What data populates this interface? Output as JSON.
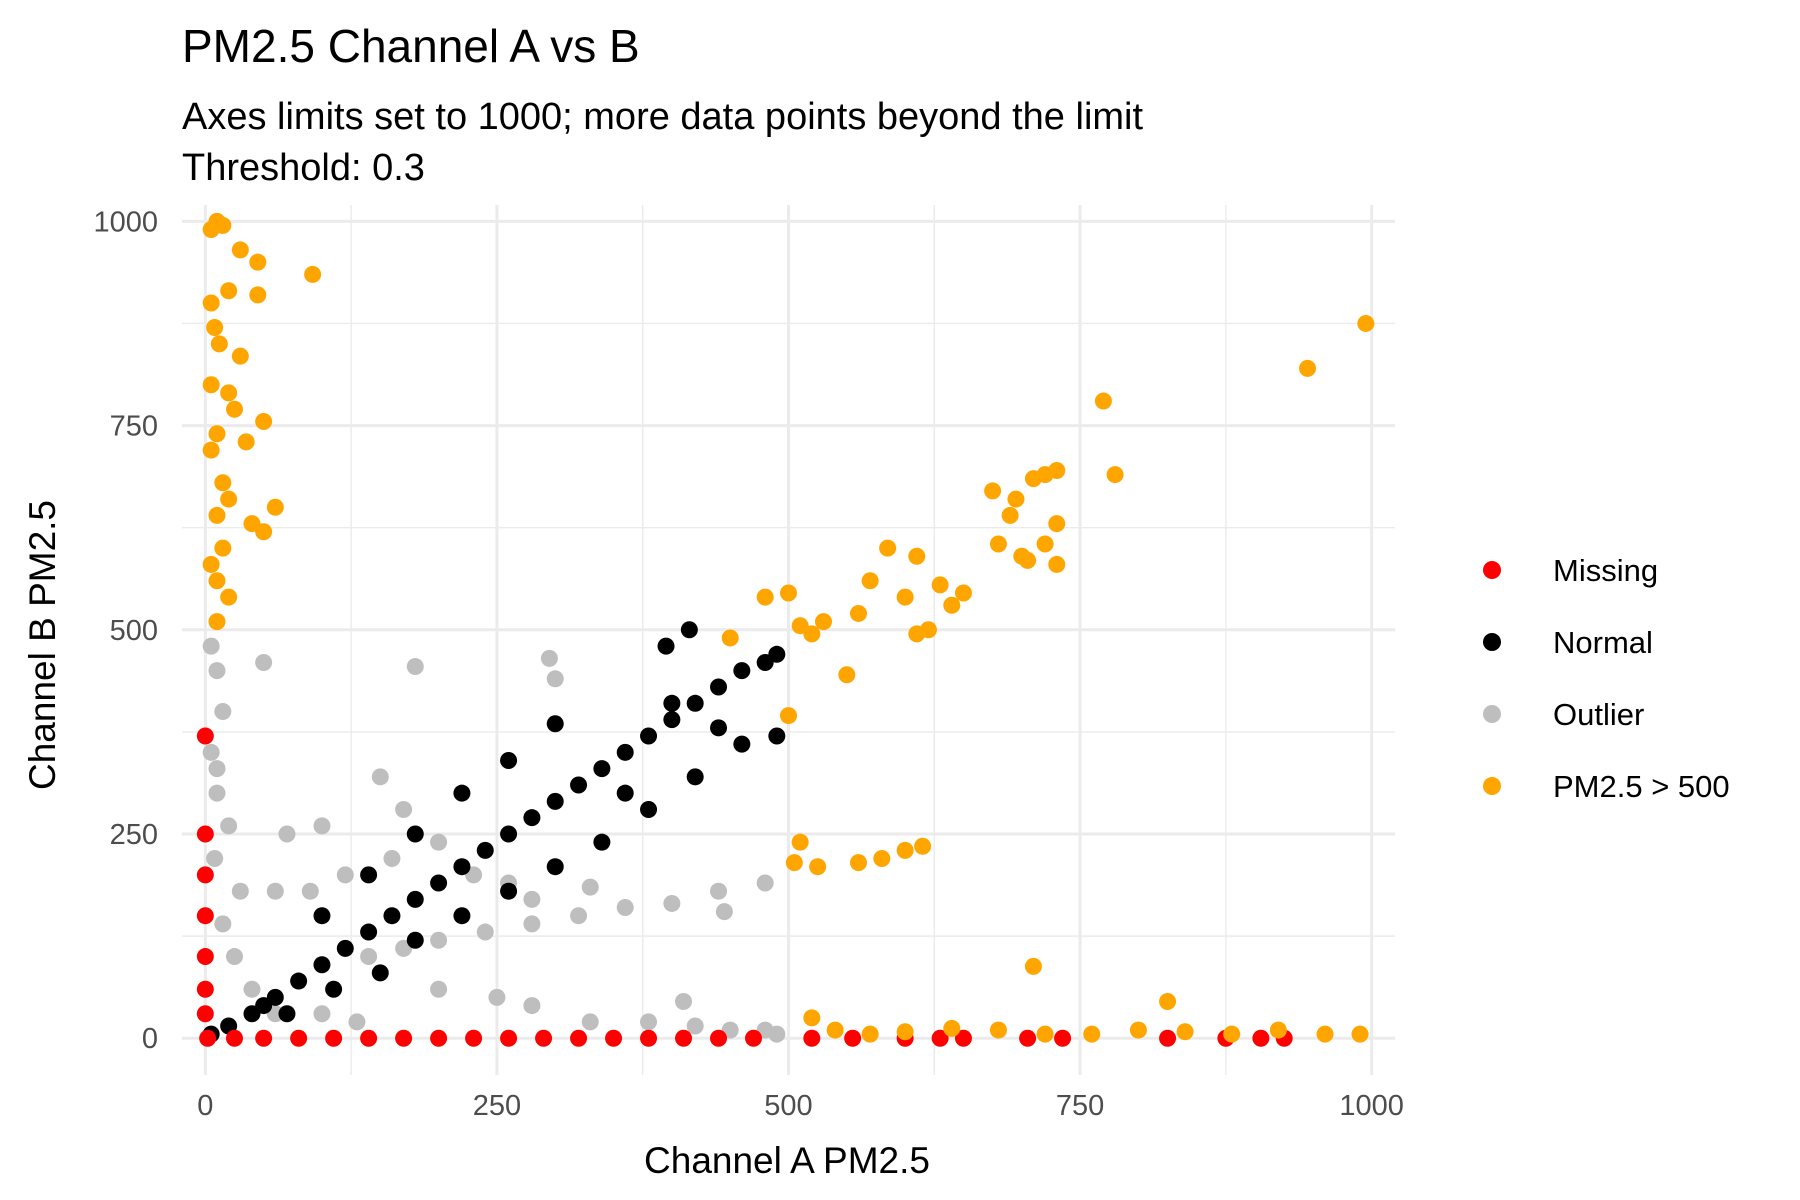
{
  "chart_data": {
    "type": "scatter",
    "title": "PM2.5 Channel A vs B",
    "subtitle_lines": [
      "Axes limits set to 1000; more data points beyond the limit",
      "Threshold: 0.3"
    ],
    "xlabel": "Channel A PM2.5",
    "ylabel": "Channel B PM2.5",
    "xlim": [
      -20,
      1020
    ],
    "ylim": [
      -45,
      1020
    ],
    "x_ticks": [
      0,
      250,
      500,
      750,
      1000
    ],
    "y_ticks": [
      0,
      250,
      500,
      750,
      1000
    ],
    "grid": true,
    "legend_position": "right",
    "series": [
      {
        "name": "Missing",
        "color": "#FF0000",
        "points": [
          [
            0,
            370
          ],
          [
            0,
            250
          ],
          [
            0,
            200
          ],
          [
            0,
            150
          ],
          [
            0,
            100
          ],
          [
            0,
            60
          ],
          [
            0,
            30
          ],
          [
            2,
            0
          ],
          [
            25,
            0
          ],
          [
            50,
            0
          ],
          [
            80,
            0
          ],
          [
            110,
            0
          ],
          [
            140,
            0
          ],
          [
            170,
            0
          ],
          [
            200,
            0
          ],
          [
            230,
            0
          ],
          [
            260,
            0
          ],
          [
            290,
            0
          ],
          [
            320,
            0
          ],
          [
            350,
            0
          ],
          [
            380,
            0
          ],
          [
            410,
            0
          ],
          [
            440,
            0
          ],
          [
            470,
            0
          ],
          [
            520,
            0
          ],
          [
            555,
            0
          ],
          [
            600,
            0
          ],
          [
            630,
            0
          ],
          [
            650,
            0
          ],
          [
            705,
            0
          ],
          [
            735,
            0
          ],
          [
            825,
            0
          ],
          [
            875,
            0
          ],
          [
            905,
            0
          ],
          [
            925,
            0
          ]
        ]
      },
      {
        "name": "Normal",
        "color": "#000000",
        "points": [
          [
            5,
            5
          ],
          [
            20,
            15
          ],
          [
            40,
            30
          ],
          [
            60,
            50
          ],
          [
            80,
            70
          ],
          [
            100,
            90
          ],
          [
            120,
            110
          ],
          [
            140,
            130
          ],
          [
            160,
            150
          ],
          [
            180,
            170
          ],
          [
            200,
            190
          ],
          [
            220,
            210
          ],
          [
            240,
            230
          ],
          [
            260,
            250
          ],
          [
            280,
            270
          ],
          [
            300,
            290
          ],
          [
            320,
            310
          ],
          [
            340,
            330
          ],
          [
            360,
            350
          ],
          [
            380,
            370
          ],
          [
            400,
            390
          ],
          [
            420,
            410
          ],
          [
            440,
            430
          ],
          [
            460,
            450
          ],
          [
            480,
            460
          ],
          [
            490,
            470
          ],
          [
            415,
            500
          ],
          [
            395,
            480
          ],
          [
            300,
            385
          ],
          [
            260,
            340
          ],
          [
            220,
            300
          ],
          [
            180,
            250
          ],
          [
            140,
            200
          ],
          [
            100,
            150
          ],
          [
            180,
            120
          ],
          [
            220,
            150
          ],
          [
            260,
            180
          ],
          [
            300,
            210
          ],
          [
            340,
            240
          ],
          [
            380,
            280
          ],
          [
            420,
            320
          ],
          [
            460,
            360
          ],
          [
            490,
            370
          ],
          [
            440,
            380
          ],
          [
            400,
            410
          ],
          [
            360,
            300
          ],
          [
            150,
            80
          ],
          [
            110,
            60
          ],
          [
            70,
            30
          ],
          [
            50,
            40
          ]
        ]
      },
      {
        "name": "Outlier",
        "color": "#BEBEBE",
        "points": [
          [
            5,
            480
          ],
          [
            10,
            450
          ],
          [
            15,
            400
          ],
          [
            5,
            350
          ],
          [
            10,
            300
          ],
          [
            20,
            260
          ],
          [
            8,
            220
          ],
          [
            30,
            180
          ],
          [
            15,
            140
          ],
          [
            25,
            100
          ],
          [
            40,
            60
          ],
          [
            60,
            30
          ],
          [
            50,
            460
          ],
          [
            180,
            455
          ],
          [
            295,
            465
          ],
          [
            300,
            440
          ],
          [
            70,
            250
          ],
          [
            100,
            260
          ],
          [
            150,
            320
          ],
          [
            170,
            280
          ],
          [
            160,
            220
          ],
          [
            120,
            200
          ],
          [
            200,
            240
          ],
          [
            230,
            200
          ],
          [
            90,
            180
          ],
          [
            260,
            190
          ],
          [
            280,
            170
          ],
          [
            330,
            185
          ],
          [
            140,
            100
          ],
          [
            170,
            110
          ],
          [
            200,
            120
          ],
          [
            240,
            130
          ],
          [
            280,
            140
          ],
          [
            320,
            150
          ],
          [
            360,
            160
          ],
          [
            400,
            165
          ],
          [
            440,
            180
          ],
          [
            480,
            190
          ],
          [
            445,
            155
          ],
          [
            200,
            60
          ],
          [
            250,
            50
          ],
          [
            280,
            40
          ],
          [
            330,
            20
          ],
          [
            380,
            20
          ],
          [
            420,
            15
          ],
          [
            450,
            10
          ],
          [
            410,
            45
          ],
          [
            480,
            10
          ],
          [
            490,
            5
          ],
          [
            100,
            30
          ],
          [
            130,
            20
          ],
          [
            10,
            330
          ],
          [
            60,
            180
          ]
        ]
      },
      {
        "name": "PM2.5 > 500",
        "color": "#FFA500",
        "points": [
          [
            10,
            1000
          ],
          [
            15,
            995
          ],
          [
            5,
            990
          ],
          [
            30,
            965
          ],
          [
            45,
            950
          ],
          [
            20,
            915
          ],
          [
            45,
            910
          ],
          [
            92,
            935
          ],
          [
            5,
            900
          ],
          [
            8,
            870
          ],
          [
            12,
            850
          ],
          [
            30,
            835
          ],
          [
            5,
            800
          ],
          [
            20,
            790
          ],
          [
            25,
            770
          ],
          [
            50,
            755
          ],
          [
            10,
            740
          ],
          [
            35,
            730
          ],
          [
            5,
            720
          ],
          [
            15,
            680
          ],
          [
            20,
            660
          ],
          [
            10,
            640
          ],
          [
            40,
            630
          ],
          [
            50,
            620
          ],
          [
            60,
            650
          ],
          [
            15,
            600
          ],
          [
            5,
            580
          ],
          [
            10,
            560
          ],
          [
            20,
            540
          ],
          [
            10,
            510
          ],
          [
            995,
            875
          ],
          [
            945,
            820
          ],
          [
            770,
            780
          ],
          [
            780,
            690
          ],
          [
            730,
            695
          ],
          [
            720,
            690
          ],
          [
            710,
            685
          ],
          [
            675,
            670
          ],
          [
            695,
            660
          ],
          [
            730,
            630
          ],
          [
            690,
            640
          ],
          [
            610,
            590
          ],
          [
            585,
            600
          ],
          [
            570,
            560
          ],
          [
            630,
            555
          ],
          [
            650,
            545
          ],
          [
            640,
            530
          ],
          [
            600,
            540
          ],
          [
            560,
            520
          ],
          [
            530,
            510
          ],
          [
            520,
            495
          ],
          [
            510,
            505
          ],
          [
            500,
            545
          ],
          [
            480,
            540
          ],
          [
            450,
            490
          ],
          [
            550,
            445
          ],
          [
            610,
            495
          ],
          [
            620,
            500
          ],
          [
            680,
            605
          ],
          [
            700,
            590
          ],
          [
            705,
            585
          ],
          [
            730,
            580
          ],
          [
            720,
            605
          ],
          [
            500,
            395
          ],
          [
            510,
            240
          ],
          [
            505,
            215
          ],
          [
            525,
            210
          ],
          [
            560,
            215
          ],
          [
            580,
            220
          ],
          [
            600,
            230
          ],
          [
            615,
            235
          ],
          [
            710,
            88
          ],
          [
            825,
            45
          ],
          [
            520,
            25
          ],
          [
            540,
            10
          ],
          [
            570,
            5
          ],
          [
            600,
            8
          ],
          [
            640,
            12
          ],
          [
            680,
            10
          ],
          [
            720,
            5
          ],
          [
            760,
            5
          ],
          [
            800,
            10
          ],
          [
            840,
            8
          ],
          [
            880,
            5
          ],
          [
            920,
            10
          ],
          [
            960,
            5
          ],
          [
            990,
            5
          ]
        ]
      }
    ]
  }
}
